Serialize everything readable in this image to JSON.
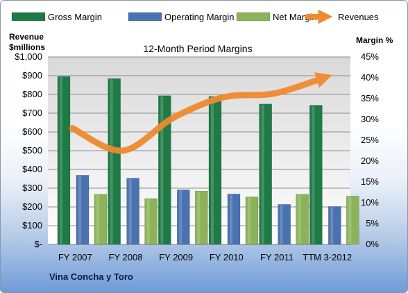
{
  "chart_data": {
    "type": "bar",
    "title": "12-Month Period Margins",
    "footer": "Vina Concha  y Toro",
    "categories": [
      "FY 2007",
      "FY 2008",
      "FY 2009",
      "FY 2010",
      "FY 2011",
      "TTM 3-2012"
    ],
    "left_axis": {
      "label_line1": "Revenue",
      "label_line2": "$millions",
      "ylim": [
        0,
        1000
      ],
      "tick_labels": [
        "$-",
        "$100",
        "$200",
        "$300",
        "$400",
        "$500",
        "$600",
        "$700",
        "$800",
        "$900",
        "$1,000"
      ]
    },
    "right_axis": {
      "label": "Margin  %",
      "ylim": [
        0,
        45
      ],
      "tick_labels": [
        "0%",
        "5%",
        "10%",
        "15%",
        "20%",
        "25%",
        "30%",
        "35%",
        "40%",
        "45%"
      ]
    },
    "series": [
      {
        "name": "Gross Margin",
        "type": "bar",
        "axis": "right",
        "color": "#1e7b45",
        "values": [
          40.3,
          39.8,
          35.7,
          35.5,
          33.7,
          33.4
        ]
      },
      {
        "name": "Operating Margin",
        "type": "bar",
        "axis": "right",
        "color": "#4a72b0",
        "values": [
          16.6,
          15.9,
          13.1,
          12.1,
          9.6,
          9.1
        ]
      },
      {
        "name": "Net Margin",
        "type": "bar",
        "axis": "right",
        "color": "#8db35a",
        "values": [
          12.0,
          11.0,
          12.8,
          11.4,
          12.0,
          11.6
        ]
      },
      {
        "name": "Revenues",
        "type": "line",
        "axis": "left",
        "color": "#f08a30",
        "values": [
          620,
          500,
          675,
          785,
          805,
          890
        ]
      }
    ],
    "grid": true,
    "legend_position": "top"
  }
}
